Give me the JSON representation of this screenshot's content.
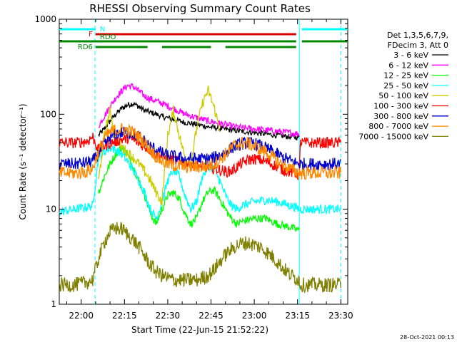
{
  "chart_data": {
    "type": "line",
    "title": "RHESSI Observing Summary Count Rates",
    "xlabel": "Start Time (22-Jun-15 21:52:22)",
    "ylabel": "Count Rate (s⁻¹ detector⁻¹)",
    "xlim_minutes_after_2150": [
      2.4,
      102.4
    ],
    "x_tick_labels": [
      "22:00",
      "22:15",
      "22:30",
      "22:45",
      "23:00",
      "23:15",
      "23:30"
    ],
    "x_tick_minutes_after_2150": [
      10,
      25,
      40,
      55,
      70,
      85,
      100
    ],
    "y_scale": "log",
    "ylim": [
      1,
      1000
    ],
    "y_tick_labels": [
      "1",
      "10",
      "100",
      "1000"
    ],
    "y_tick_values": [
      1,
      10,
      100,
      1000
    ],
    "legend": {
      "header": [
        "Det 1,3,5,6,7,9,",
        "FDecim 3, Att 0"
      ],
      "placement": "right"
    },
    "series": [
      {
        "name": "3 - 6 keV",
        "color": "#000000",
        "x": [
          2.4,
          14,
          16,
          18,
          20,
          22,
          24,
          26,
          28,
          30,
          32,
          34,
          38,
          42,
          46,
          50,
          54,
          58,
          62,
          66,
          70,
          74,
          78,
          82,
          85.6,
          85.7,
          102.4
        ],
        "y": [
          null,
          null,
          60,
          70,
          85,
          100,
          115,
          125,
          130,
          120,
          110,
          105,
          95,
          88,
          82,
          78,
          74,
          71,
          68,
          66,
          64,
          62,
          60,
          58,
          57,
          null,
          null
        ]
      },
      {
        "name": "6 - 12 keV",
        "color": "#ff00ff",
        "x": [
          2.4,
          14,
          16,
          18,
          20,
          22,
          24,
          26,
          28,
          30,
          32,
          34,
          38,
          42,
          46,
          50,
          54,
          58,
          62,
          66,
          70,
          74,
          78,
          82,
          85.6,
          85.7,
          102.4
        ],
        "y": [
          null,
          null,
          75,
          95,
          120,
          150,
          175,
          200,
          195,
          175,
          155,
          145,
          130,
          115,
          100,
          92,
          85,
          80,
          75,
          72,
          70,
          68,
          66,
          64,
          62,
          null,
          null
        ]
      },
      {
        "name": "12 - 25 keV",
        "color": "#00ff00",
        "x": [
          2.4,
          14.5,
          16,
          18,
          20,
          22,
          24,
          26,
          28,
          30,
          32,
          34,
          36,
          38,
          40,
          42,
          44,
          46,
          48,
          50,
          52,
          54,
          56,
          58,
          60,
          62,
          64,
          66,
          70,
          74,
          78,
          82,
          85.6,
          85.7,
          102.4
        ],
        "y": [
          null,
          null,
          15,
          22,
          30,
          38,
          45,
          38,
          28,
          20,
          14,
          9,
          7,
          10,
          14,
          15,
          13,
          9,
          7,
          8,
          12,
          15,
          16,
          13,
          10,
          8,
          7,
          7.5,
          8,
          8,
          7,
          6.5,
          6,
          null,
          null
        ]
      },
      {
        "name": "25 - 50 keV",
        "color": "#00ffff",
        "x": [
          2.4,
          3,
          8,
          12,
          14,
          16,
          18,
          20,
          22,
          24,
          26,
          28,
          30,
          32,
          34,
          36,
          38,
          40,
          42,
          44,
          46,
          48,
          50,
          52,
          54,
          56,
          58,
          60,
          62,
          64,
          66,
          70,
          74,
          78,
          82,
          84,
          86,
          90,
          96,
          100,
          102.4
        ],
        "y": [
          9.5,
          9.5,
          10,
          10.5,
          11,
          35,
          40,
          45,
          42,
          38,
          32,
          26,
          20,
          15,
          10,
          8,
          12,
          20,
          26,
          22,
          14,
          10,
          12,
          22,
          28,
          27,
          20,
          14,
          11,
          10,
          11,
          12,
          12.5,
          12,
          11,
          10.5,
          10,
          10,
          10,
          10,
          null
        ]
      },
      {
        "name": "50 - 100 keV",
        "color": "#cccc00",
        "x": [
          2.4,
          14.5,
          16,
          18,
          20,
          22,
          24,
          26,
          28,
          30,
          32,
          34,
          36,
          38,
          40,
          42,
          44,
          46,
          48,
          50,
          52,
          54,
          56,
          58,
          60,
          62,
          85.6,
          102.4
        ],
        "y": [
          null,
          null,
          20,
          60,
          110,
          55,
          45,
          40,
          35,
          30,
          25,
          20,
          15,
          12,
          60,
          110,
          60,
          35,
          30,
          70,
          130,
          180,
          120,
          70,
          null,
          null,
          null,
          null
        ]
      },
      {
        "name": "100 - 300 keV",
        "color": "#ff0000",
        "x": [
          2.4,
          3,
          8,
          12,
          14,
          16,
          18,
          20,
          22,
          24,
          26,
          28,
          30,
          32,
          34,
          36,
          38,
          40,
          42,
          44,
          46,
          48,
          50,
          52,
          54,
          56,
          58,
          60,
          62,
          64,
          66,
          68,
          70,
          72,
          74,
          76,
          78,
          80,
          82,
          84,
          85.6,
          86,
          90,
          96,
          100,
          102.4
        ],
        "y": [
          50,
          50,
          50,
          52,
          58,
          42,
          46,
          50,
          52,
          54,
          56,
          54,
          50,
          46,
          42,
          38,
          36,
          34,
          33,
          32,
          31,
          30,
          29,
          28,
          28,
          27,
          26,
          25,
          25,
          28,
          31,
          33,
          34,
          33,
          32,
          30,
          28,
          26,
          25,
          24,
          23,
          50,
          50,
          50,
          50,
          null
        ]
      },
      {
        "name": "300 - 800 keV",
        "color": "#0000cc",
        "x": [
          2.4,
          3,
          8,
          12,
          14,
          16,
          18,
          20,
          22,
          24,
          26,
          28,
          30,
          32,
          34,
          36,
          38,
          40,
          42,
          44,
          46,
          48,
          50,
          52,
          54,
          56,
          58,
          60,
          62,
          64,
          66,
          68,
          70,
          72,
          74,
          76,
          78,
          80,
          82,
          84,
          85.6,
          86,
          90,
          96,
          100,
          102.4
        ],
        "y": [
          30,
          30,
          30,
          31,
          32,
          38,
          48,
          56,
          62,
          64,
          64,
          62,
          58,
          52,
          46,
          42,
          39,
          37,
          36,
          35,
          34,
          34,
          34,
          34,
          34,
          35,
          37,
          40,
          44,
          47,
          49,
          50,
          49,
          47,
          44,
          41,
          38,
          35,
          33,
          31,
          30,
          30,
          30,
          30,
          30,
          null
        ]
      },
      {
        "name": "800 - 7000 keV",
        "color": "#ff8800",
        "x": [
          2.4,
          3,
          8,
          12,
          14,
          16,
          18,
          20,
          22,
          24,
          26,
          28,
          30,
          32,
          34,
          36,
          38,
          40,
          42,
          44,
          46,
          48,
          50,
          52,
          54,
          56,
          58,
          60,
          62,
          64,
          66,
          68,
          70,
          72,
          74,
          76,
          78,
          80,
          82,
          84,
          85.6,
          86,
          90,
          96,
          100,
          102.4
        ],
        "y": [
          24,
          24,
          24,
          25,
          27,
          40,
          56,
          64,
          68,
          70,
          68,
          64,
          58,
          50,
          42,
          36,
          32,
          30,
          29,
          28.5,
          28,
          28,
          28,
          28,
          28.5,
          30,
          33,
          38,
          44,
          48,
          50,
          49,
          46,
          43,
          40,
          36,
          32,
          29,
          27,
          25,
          24,
          24,
          24,
          24,
          24,
          null
        ]
      },
      {
        "name": "7000 - 15000 keV",
        "color": "#808000",
        "x": [
          2.4,
          3,
          8,
          12,
          14,
          16,
          18,
          20,
          22,
          24,
          26,
          28,
          30,
          32,
          34,
          36,
          38,
          40,
          42,
          44,
          46,
          48,
          50,
          52,
          54,
          56,
          58,
          60,
          62,
          64,
          66,
          68,
          70,
          72,
          74,
          76,
          78,
          80,
          82,
          84,
          85.6,
          86,
          90,
          96,
          100,
          102.4
        ],
        "y": [
          1.6,
          1.6,
          1.6,
          1.7,
          1.8,
          3,
          4.5,
          5.8,
          6.3,
          6.2,
          5.5,
          4.8,
          4,
          3.2,
          2.6,
          2.2,
          2,
          1.9,
          1.8,
          1.8,
          1.8,
          1.8,
          1.8,
          1.9,
          2,
          2.3,
          2.8,
          3.3,
          3.8,
          4.2,
          4.4,
          4.4,
          4.2,
          4,
          3.6,
          3.2,
          2.8,
          2.4,
          2.1,
          1.9,
          1.8,
          1.6,
          1.6,
          1.6,
          1.6,
          null
        ]
      }
    ],
    "status_bars": [
      {
        "label": "N",
        "color": "#00ffff",
        "segments": [
          [
            2.4,
            15
          ],
          [
            86.5,
            102.4
          ]
        ],
        "level": 1
      },
      {
        "label": "F",
        "color": "#dd0000",
        "segments": [
          [
            15,
            84.5
          ]
        ],
        "level": 2
      },
      {
        "label": "RDO",
        "color": "#008800",
        "segments": [
          [
            2.4,
            84.5
          ],
          [
            86.5,
            102.4
          ]
        ],
        "level": 3
      },
      {
        "label": "RD6",
        "color": "#008800",
        "segments": [
          [
            15,
            33
          ],
          [
            38,
            55
          ],
          [
            60,
            84.5
          ]
        ],
        "level": 4
      }
    ],
    "vertical_markers": [
      {
        "x": 14.8,
        "color": "#00ffff",
        "style": "dashed"
      },
      {
        "x": 85.6,
        "color": "#00ffff",
        "style": "solid"
      },
      {
        "x": 100,
        "color": "#00ffff",
        "style": "dashed"
      }
    ],
    "grid": false
  },
  "footer": {
    "timestamp": "28-Oct-2021 00:13"
  }
}
